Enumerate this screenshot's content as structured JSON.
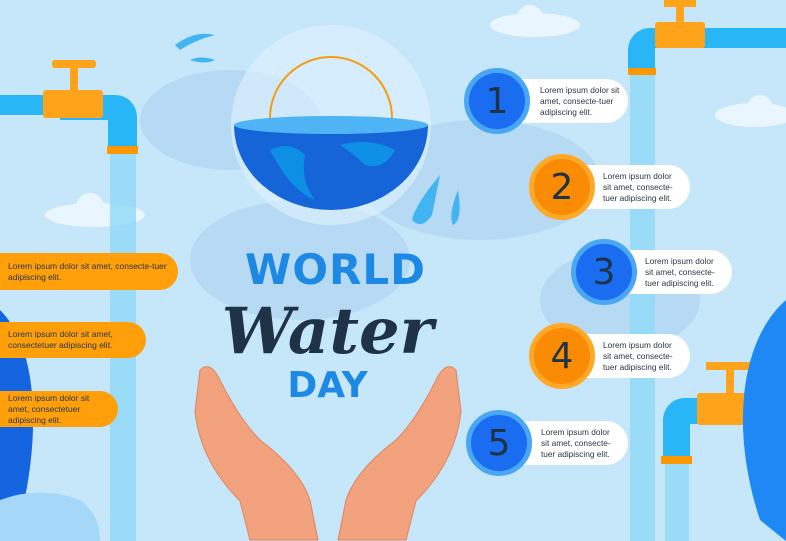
{
  "title": {
    "line1": "WORLD",
    "line2": "Water",
    "line3": "DAY"
  },
  "colors": {
    "background": "#c6e7fa",
    "orange": "#ff9f0a",
    "blue": "#1a6cf0",
    "navy": "#1f3347",
    "title_blue": "#1e88e5"
  },
  "left_notes": [
    "Lorem ipsum dolor sit amet, consecte-tuer adipiscing elit.",
    "Lorem ipsum dolor sit amet, consectetuer adipiscing elit.",
    "Lorem ipsum dolor sit amet, consectetuer adipiscing elit."
  ],
  "steps": [
    {
      "number": "1",
      "text": "Lorem ipsum dolor sit amet, consecte-tuer adipiscing elit.",
      "color": "blue"
    },
    {
      "number": "2",
      "text": "Lorem ipsum dolor sit amet, consecte-tuer adipiscing elit.",
      "color": "orange"
    },
    {
      "number": "3",
      "text": "Lorem ipsum dolor sit amet, consecte-tuer adipiscing elit.",
      "color": "blue"
    },
    {
      "number": "4",
      "text": "Lorem ipsum dolor sit amet, consecte-tuer adipiscing elit.",
      "color": "orange"
    },
    {
      "number": "5",
      "text": "Lorem ipsum dolor sit amet, consecte-tuer adipiscing elit.",
      "color": "blue"
    }
  ],
  "icons": [
    "faucet-icon",
    "globe-icon",
    "hands-icon",
    "water-drop-icon",
    "leaf-icon",
    "cloud-icon"
  ]
}
